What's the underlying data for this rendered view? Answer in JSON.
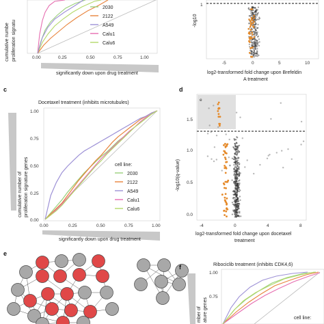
{
  "panels": {
    "a": {
      "ylabel_top": "cumulative numbe",
      "ylabel_bottom": "proliferation signatu",
      "xticks": [
        "0.00",
        "0.25",
        "0.50",
        "0.75",
        "1.00"
      ],
      "xlabel": "significantly down upon drug treatment",
      "legend": [
        "2030",
        "2122",
        "A549",
        "Calu1",
        "Calu6"
      ]
    },
    "b": {
      "ylabel": "-log10",
      "yticks": [
        "1"
      ],
      "xticks": [
        "-5",
        "0",
        "5",
        "10"
      ],
      "xlabel_line1": "log2-transformed fold change upon Brefeldin",
      "xlabel_line2": "A treatment"
    },
    "c": {
      "letter": "c",
      "title": "Docetaxel treatment (inhibits microtubules)",
      "ylabel_line1": "cumulative number of",
      "ylabel_line2": "proliferation signature genes",
      "yticks": [
        "0.00",
        "0.25",
        "0.50",
        "0.75",
        "1.00"
      ],
      "xticks": [
        "0.00",
        "0.25",
        "0.50",
        "0.75",
        "1.00"
      ],
      "xlabel": "significantly down upon drug treatment",
      "legend_title": "cell line:",
      "legend": [
        "2030",
        "2122",
        "A549",
        "Calu1",
        "Calu6"
      ]
    },
    "d": {
      "letter": "d",
      "box_label": "e",
      "ylabel": "-log10(q-value)",
      "yticks": [
        "1.5",
        "1.0",
        "0.5",
        "0.0"
      ],
      "xticks": [
        "-4",
        "0",
        "4",
        "8"
      ],
      "xlabel_line1": "log2-transformed fold change upon docetaxel",
      "xlabel_line2": "treatment"
    },
    "e": {
      "letter": "e"
    },
    "f": {
      "letter": "f",
      "title": "Ribociclib treatment (inhibits CDK4,6)",
      "ylabel_line1": "mber of",
      "ylabel_line2": "ature genes",
      "yticks": [
        "1.00",
        "0.75"
      ],
      "legend_title": "cell line:"
    }
  },
  "colors": {
    "c2030": "#9ad07a",
    "c2122": "#e8823a",
    "cA549": "#9d91d6",
    "cCalu1": "#e66db0",
    "cCalu6": "#b4d86a",
    "orange_points": "#e58a2a",
    "red_node": "#e04848",
    "grey_node": "#a8a8a8"
  },
  "chart_data": [
    {
      "panel": "c",
      "type": "line",
      "title": "Docetaxel treatment (inhibits microtubules)",
      "xlabel": "significantly down upon drug treatment",
      "ylabel": "cumulative number of proliferation signature genes",
      "xlim": [
        0,
        1
      ],
      "ylim": [
        0,
        1
      ],
      "x": [
        0,
        0.05,
        0.1,
        0.15,
        0.2,
        0.25,
        0.3,
        0.35,
        0.4,
        0.45,
        0.5,
        0.55,
        0.6,
        0.65,
        0.7,
        0.75,
        0.8,
        0.85,
        0.9,
        0.95,
        1.0
      ],
      "series": [
        {
          "name": "2030",
          "values": [
            0,
            0.06,
            0.12,
            0.18,
            0.25,
            0.31,
            0.37,
            0.43,
            0.48,
            0.53,
            0.58,
            0.62,
            0.67,
            0.72,
            0.76,
            0.81,
            0.85,
            0.89,
            0.93,
            0.97,
            1.0
          ]
        },
        {
          "name": "2122",
          "values": [
            0,
            0.05,
            0.1,
            0.15,
            0.22,
            0.29,
            0.36,
            0.42,
            0.48,
            0.54,
            0.59,
            0.65,
            0.71,
            0.76,
            0.8,
            0.84,
            0.88,
            0.92,
            0.95,
            0.98,
            1.0
          ]
        },
        {
          "name": "A549",
          "values": [
            0,
            0.22,
            0.34,
            0.43,
            0.49,
            0.54,
            0.59,
            0.63,
            0.66,
            0.69,
            0.72,
            0.75,
            0.78,
            0.81,
            0.84,
            0.87,
            0.9,
            0.93,
            0.95,
            0.98,
            1.0
          ]
        },
        {
          "name": "Calu1",
          "values": [
            0,
            0.04,
            0.09,
            0.14,
            0.2,
            0.26,
            0.32,
            0.38,
            0.44,
            0.5,
            0.56,
            0.61,
            0.66,
            0.71,
            0.76,
            0.81,
            0.85,
            0.9,
            0.94,
            0.97,
            1.0
          ]
        },
        {
          "name": "Calu6",
          "values": [
            0,
            0.04,
            0.08,
            0.13,
            0.19,
            0.25,
            0.31,
            0.37,
            0.43,
            0.49,
            0.54,
            0.6,
            0.65,
            0.7,
            0.75,
            0.8,
            0.85,
            0.89,
            0.93,
            0.97,
            1.0
          ]
        }
      ]
    }
  ]
}
